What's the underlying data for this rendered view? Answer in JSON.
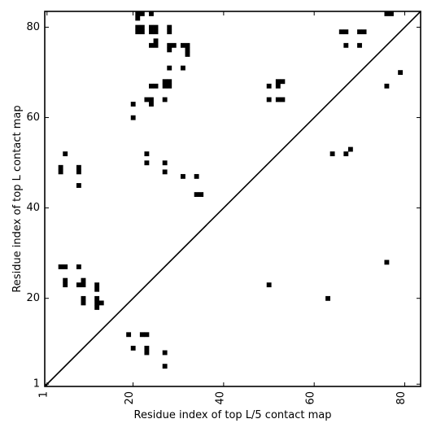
{
  "chart_data": {
    "type": "heatmap",
    "title": "",
    "xlabel": "Residue index of top L/5 contact map",
    "ylabel": "Residue index of top L contact map",
    "xlim": [
      0.5,
      83.5
    ],
    "ylim": [
      0.5,
      83.5
    ],
    "xticks": [
      {
        "value": 1,
        "label": "1"
      },
      {
        "value": 20,
        "label": "20"
      },
      {
        "value": 40,
        "label": "40"
      },
      {
        "value": 60,
        "label": "60"
      },
      {
        "value": 80,
        "label": "80"
      }
    ],
    "yticks": [
      {
        "value": 1,
        "label": "1"
      },
      {
        "value": 20,
        "label": "20"
      },
      {
        "value": 40,
        "label": "40"
      },
      {
        "value": 60,
        "label": "60"
      },
      {
        "value": 80,
        "label": "80"
      }
    ],
    "diagonal": true,
    "upper_cells": [
      [
        21,
        82
      ],
      [
        21,
        83
      ],
      [
        22,
        83
      ],
      [
        24,
        83
      ],
      [
        21,
        79
      ],
      [
        21,
        80
      ],
      [
        22,
        79
      ],
      [
        22,
        80
      ],
      [
        24,
        79
      ],
      [
        24,
        80
      ],
      [
        25,
        79
      ],
      [
        25,
        80
      ],
      [
        28,
        79
      ],
      [
        28,
        80
      ],
      [
        24,
        76
      ],
      [
        25,
        76
      ],
      [
        25,
        77
      ],
      [
        28,
        75
      ],
      [
        28,
        76
      ],
      [
        29,
        76
      ],
      [
        31,
        76
      ],
      [
        32,
        76
      ],
      [
        32,
        75
      ],
      [
        32,
        74
      ],
      [
        28,
        71
      ],
      [
        31,
        71
      ],
      [
        27,
        67
      ],
      [
        27,
        68
      ],
      [
        28,
        67
      ],
      [
        28,
        68
      ],
      [
        24,
        67
      ],
      [
        25,
        67
      ],
      [
        23,
        64
      ],
      [
        24,
        64
      ],
      [
        24,
        63
      ],
      [
        27,
        64
      ],
      [
        20,
        63
      ],
      [
        20,
        60
      ],
      [
        23,
        52
      ],
      [
        23,
        50
      ],
      [
        27,
        50
      ],
      [
        27,
        48
      ],
      [
        31,
        47
      ],
      [
        34,
        47
      ],
      [
        34,
        43
      ],
      [
        35,
        43
      ],
      [
        50,
        67
      ],
      [
        52,
        67
      ],
      [
        52,
        68
      ],
      [
        53,
        68
      ],
      [
        50,
        64
      ],
      [
        52,
        64
      ],
      [
        53,
        64
      ],
      [
        64,
        52
      ],
      [
        67,
        52
      ],
      [
        68,
        53
      ],
      [
        66,
        79
      ],
      [
        67,
        79
      ],
      [
        70,
        79
      ],
      [
        71,
        79
      ],
      [
        67,
        76
      ],
      [
        70,
        76
      ],
      [
        76,
        83
      ],
      [
        77,
        83
      ],
      [
        79,
        70
      ],
      [
        76,
        67
      ]
    ],
    "lower_cells": [
      [
        5,
        52
      ],
      [
        4,
        49
      ],
      [
        4,
        48
      ],
      [
        8,
        49
      ],
      [
        8,
        48
      ],
      [
        8,
        45
      ],
      [
        4,
        27
      ],
      [
        5,
        27
      ],
      [
        8,
        27
      ],
      [
        5,
        24
      ],
      [
        5,
        23
      ],
      [
        8,
        23
      ],
      [
        9,
        23
      ],
      [
        9,
        24
      ],
      [
        12,
        23
      ],
      [
        12,
        22
      ],
      [
        9,
        20
      ],
      [
        9,
        19
      ],
      [
        12,
        20
      ],
      [
        12,
        19
      ],
      [
        12,
        18
      ],
      [
        13,
        19
      ],
      [
        50,
        23
      ],
      [
        63,
        20
      ],
      [
        76,
        28
      ],
      [
        19,
        12
      ],
      [
        22,
        12
      ],
      [
        23,
        12
      ],
      [
        20,
        9
      ],
      [
        23,
        9
      ],
      [
        23,
        8
      ],
      [
        27,
        8
      ],
      [
        27,
        5
      ]
    ]
  }
}
